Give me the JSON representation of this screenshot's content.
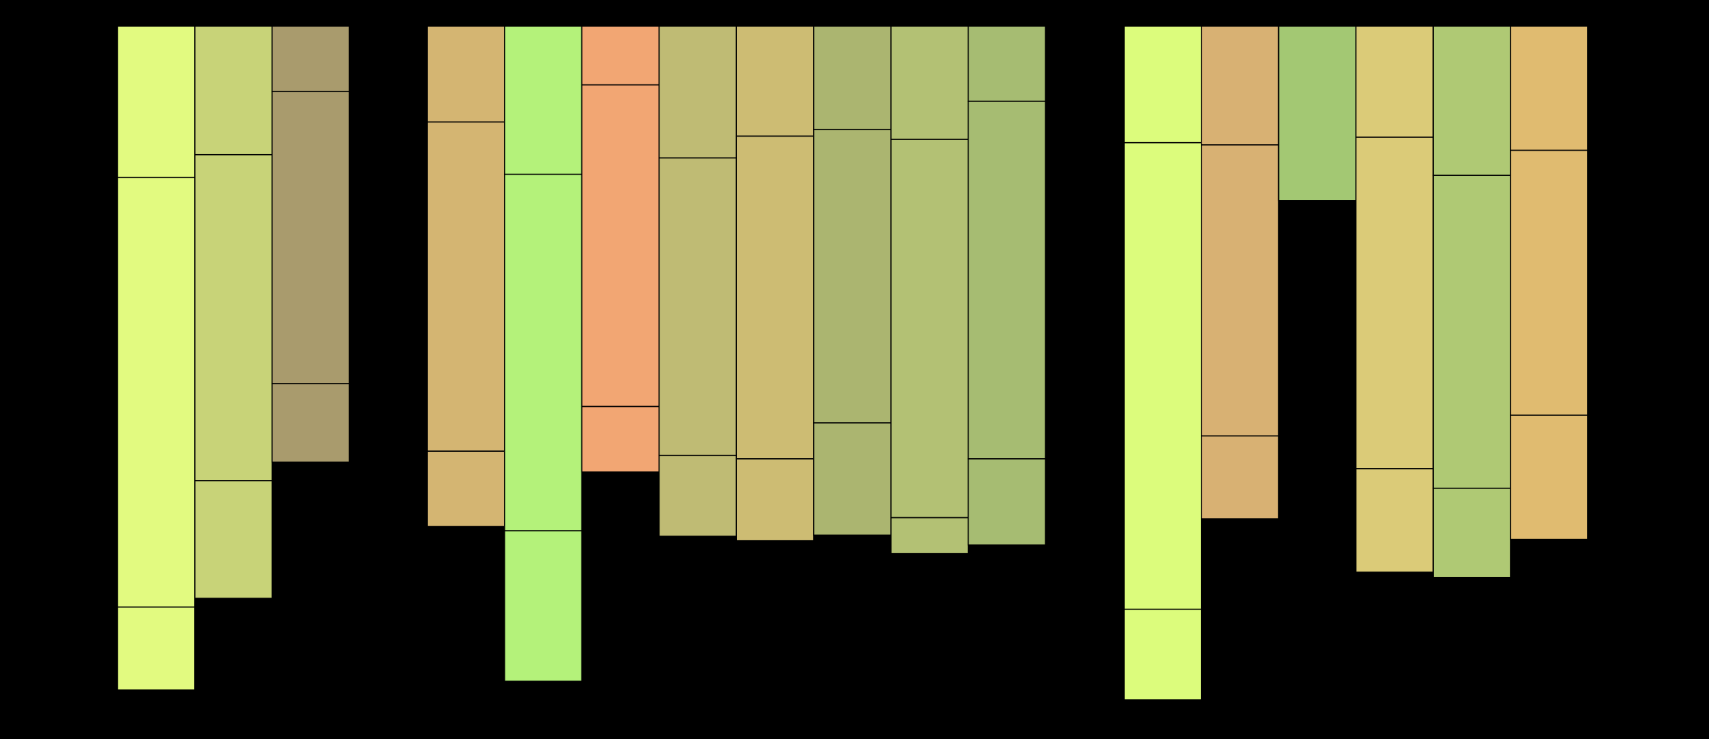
{
  "chart_data": [
    {
      "type": "bar",
      "ylim": [
        0,
        654
      ],
      "columns": [
        {
          "color": "#e2fa80",
          "values": [
            139,
            394,
            76
          ]
        },
        {
          "color": "#c8d378",
          "values": [
            118,
            299,
            108
          ]
        },
        {
          "color": "#a99b6d",
          "values": [
            60,
            268,
            72
          ]
        }
      ]
    },
    {
      "type": "bar",
      "ylim": [
        0,
        654
      ],
      "columns": [
        {
          "color": "#d4b572",
          "values": [
            88,
            302,
            69
          ]
        },
        {
          "color": "#b4f27a",
          "values": [
            136,
            327,
            138
          ]
        },
        {
          "color": "#f2a673",
          "values": [
            54,
            295,
            60
          ]
        },
        {
          "color": "#bfbb74",
          "values": [
            121,
            273,
            74
          ]
        },
        {
          "color": "#cdbc73",
          "values": [
            101,
            296,
            75
          ]
        },
        {
          "color": "#abb570",
          "values": [
            95,
            269,
            103
          ]
        },
        {
          "color": "#b3c174",
          "values": [
            104,
            347,
            33
          ]
        },
        {
          "color": "#a6bc72",
          "values": [
            69,
            328,
            79
          ]
        }
      ]
    },
    {
      "type": "bar",
      "ylim": [
        0,
        654
      ],
      "columns": [
        {
          "color": "#dcfc7c",
          "values": [
            107,
            428,
            83
          ]
        },
        {
          "color": "#d8b173",
          "values": [
            109,
            267,
            76
          ]
        },
        {
          "color": "#a3c873",
          "values": [
            160
          ]
        },
        {
          "color": "#dbcb78",
          "values": [
            102,
            304,
            95
          ]
        },
        {
          "color": "#afc974",
          "values": [
            137,
            287,
            82
          ]
        },
        {
          "color": "#e0bb70",
          "values": [
            114,
            243,
            114
          ]
        }
      ]
    }
  ]
}
